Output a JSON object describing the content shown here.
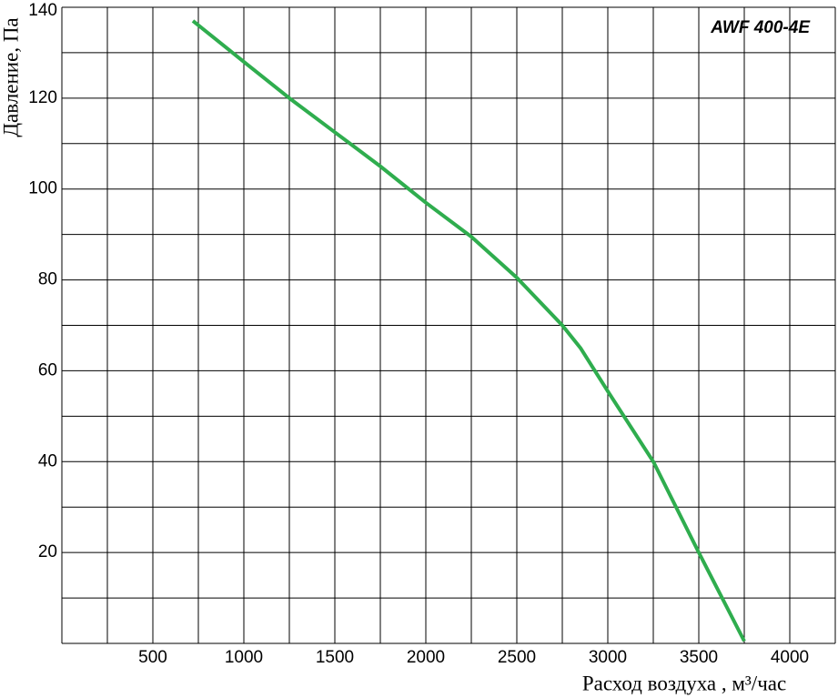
{
  "chart_data": {
    "type": "line",
    "title": "AWF 400-4E",
    "x_label": "Расход воздуха , м³/час",
    "y_label": "Давление, Па",
    "series": [
      {
        "name": "AWF 400-4E",
        "color": "#2fad4e",
        "x": [
          720,
          1000,
          1250,
          1500,
          1750,
          2000,
          2250,
          2500,
          2750,
          2850,
          3000,
          3250,
          3500,
          3750
        ],
        "values": [
          137,
          128,
          120,
          112.5,
          105,
          97,
          89.5,
          80.5,
          70,
          65,
          55.5,
          40,
          20,
          0.5
        ]
      }
    ],
    "xlim": [
      0,
      4250
    ],
    "ylim": [
      0,
      140
    ],
    "xticks": [
      500,
      1000,
      1500,
      2000,
      2500,
      3000,
      3500,
      4000
    ],
    "yticks": [
      20,
      40,
      60,
      80,
      100,
      120,
      140
    ],
    "xminor": [
      250,
      750,
      1250,
      1750,
      2250,
      2750,
      3250,
      3750,
      4250
    ],
    "yminor": [
      10,
      30,
      50,
      70,
      90,
      110,
      130
    ],
    "grid": true
  }
}
